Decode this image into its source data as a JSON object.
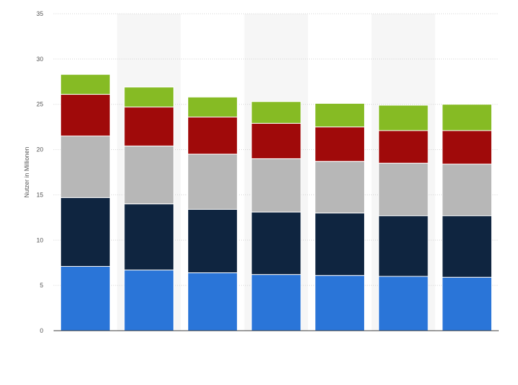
{
  "chart_data": {
    "type": "bar",
    "stacked": true,
    "categories": [
      "",
      "",
      "",
      "",
      "",
      "",
      ""
    ],
    "series": [
      {
        "color": "#2a75d8",
        "values": [
          7.1,
          6.7,
          6.4,
          6.2,
          6.1,
          6.0,
          5.9
        ]
      },
      {
        "color": "#0f2540",
        "values": [
          7.6,
          7.3,
          7.0,
          6.9,
          6.9,
          6.7,
          6.8
        ]
      },
      {
        "color": "#b7b7b7",
        "values": [
          6.8,
          6.4,
          6.1,
          5.9,
          5.7,
          5.8,
          5.7
        ]
      },
      {
        "color": "#a00a0a",
        "values": [
          4.6,
          4.3,
          4.1,
          3.9,
          3.8,
          3.6,
          3.7
        ]
      },
      {
        "color": "#86bb24",
        "values": [
          2.2,
          2.2,
          2.2,
          2.4,
          2.6,
          2.8,
          2.9
        ]
      }
    ],
    "ylabel": "Nutzer in Millionen",
    "ylim": [
      0,
      35
    ],
    "yticks": [
      0,
      5,
      10,
      15,
      20,
      25,
      30,
      35
    ],
    "grid": true,
    "alternating_bands": true,
    "legend": "none"
  }
}
